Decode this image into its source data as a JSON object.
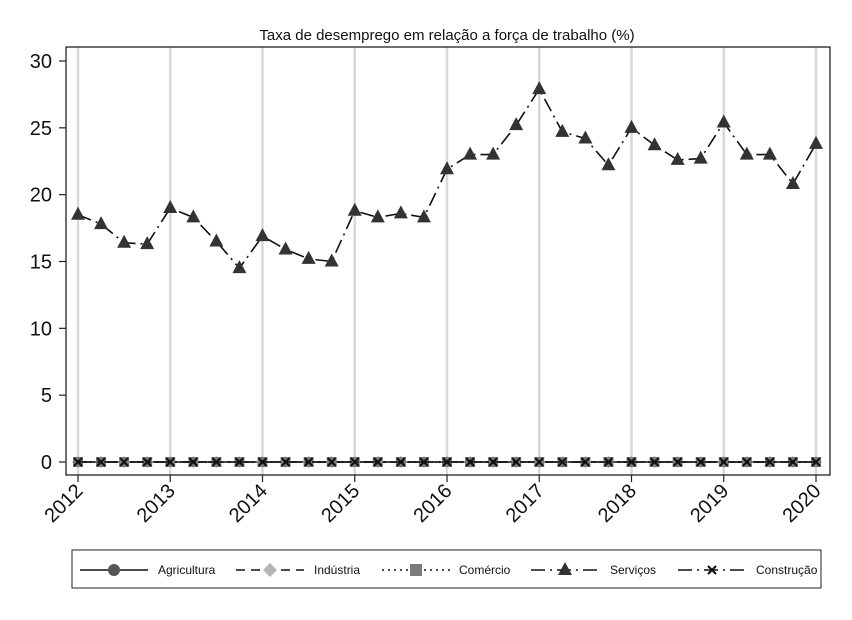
{
  "chart_data": {
    "type": "line",
    "title": "Taxa de desemprego em relação a força de trabalho (%)",
    "xlabel": "",
    "ylabel": "",
    "ylim": [
      0,
      30
    ],
    "yticks": [
      "0",
      "5",
      "10",
      "15",
      "20",
      "25",
      "30"
    ],
    "xlim": [
      2012,
      2020
    ],
    "xticks": [
      "2012",
      "2013",
      "2014",
      "2015",
      "2016",
      "2017",
      "2018",
      "2019",
      "2020"
    ],
    "grid": "vertical",
    "legend_position": "bottom",
    "x": [
      2012,
      2012.25,
      2012.5,
      2012.75,
      2013,
      2013.25,
      2013.5,
      2013.75,
      2014,
      2014.25,
      2014.5,
      2014.75,
      2015,
      2015.25,
      2015.5,
      2015.75,
      2016,
      2016.25,
      2016.5,
      2016.75,
      2017,
      2017.25,
      2017.5,
      2017.75,
      2018,
      2018.25,
      2018.5,
      2018.75,
      2019,
      2019.25,
      2019.5,
      2019.75,
      2020
    ],
    "series": [
      {
        "name": "Agricultura",
        "marker": "circle",
        "dash": "solid",
        "color": "#555555",
        "values": [
          0,
          0,
          0,
          0,
          0,
          0,
          0,
          0,
          0,
          0,
          0,
          0,
          0,
          0,
          0,
          0,
          0,
          0,
          0,
          0,
          0,
          0,
          0,
          0,
          0,
          0,
          0,
          0,
          0,
          0,
          0,
          0,
          0
        ]
      },
      {
        "name": "Indústria",
        "marker": "diamond",
        "dash": "dash",
        "color": "#b5b5b5",
        "values": [
          0,
          0,
          0,
          0,
          0,
          0,
          0,
          0,
          0,
          0,
          0,
          0,
          0,
          0,
          0,
          0,
          0,
          0,
          0,
          0,
          0,
          0,
          0,
          0,
          0,
          0,
          0,
          0,
          0,
          0,
          0,
          0,
          0
        ]
      },
      {
        "name": "Comércio",
        "marker": "square",
        "dash": "dot",
        "color": "#7a7a7a",
        "values": [
          0,
          0,
          0,
          0,
          0,
          0,
          0,
          0,
          0,
          0,
          0,
          0,
          0,
          0,
          0,
          0,
          0,
          0,
          0,
          0,
          0,
          0,
          0,
          0,
          0,
          0,
          0,
          0,
          0,
          0,
          0,
          0,
          0
        ]
      },
      {
        "name": "Serviços",
        "marker": "triangle",
        "dash": "longdash-dot",
        "color": "#333333",
        "values": [
          18.5,
          17.8,
          16.4,
          16.3,
          19.0,
          18.3,
          16.5,
          14.5,
          16.9,
          15.9,
          15.2,
          15.0,
          18.8,
          18.3,
          18.6,
          18.3,
          21.9,
          23.0,
          23.0,
          25.2,
          27.9,
          24.7,
          24.2,
          22.2,
          25.0,
          23.7,
          22.6,
          22.7,
          25.4,
          23.0,
          23.0,
          20.8,
          23.8
        ]
      },
      {
        "name": "Construção",
        "marker": "x",
        "dash": "longdash-dot",
        "color": "#111111",
        "values": [
          0,
          0,
          0,
          0,
          0,
          0,
          0,
          0,
          0,
          0,
          0,
          0,
          0,
          0,
          0,
          0,
          0,
          0,
          0,
          0,
          0,
          0,
          0,
          0,
          0,
          0,
          0,
          0,
          0,
          0,
          0,
          0,
          0
        ]
      }
    ]
  }
}
